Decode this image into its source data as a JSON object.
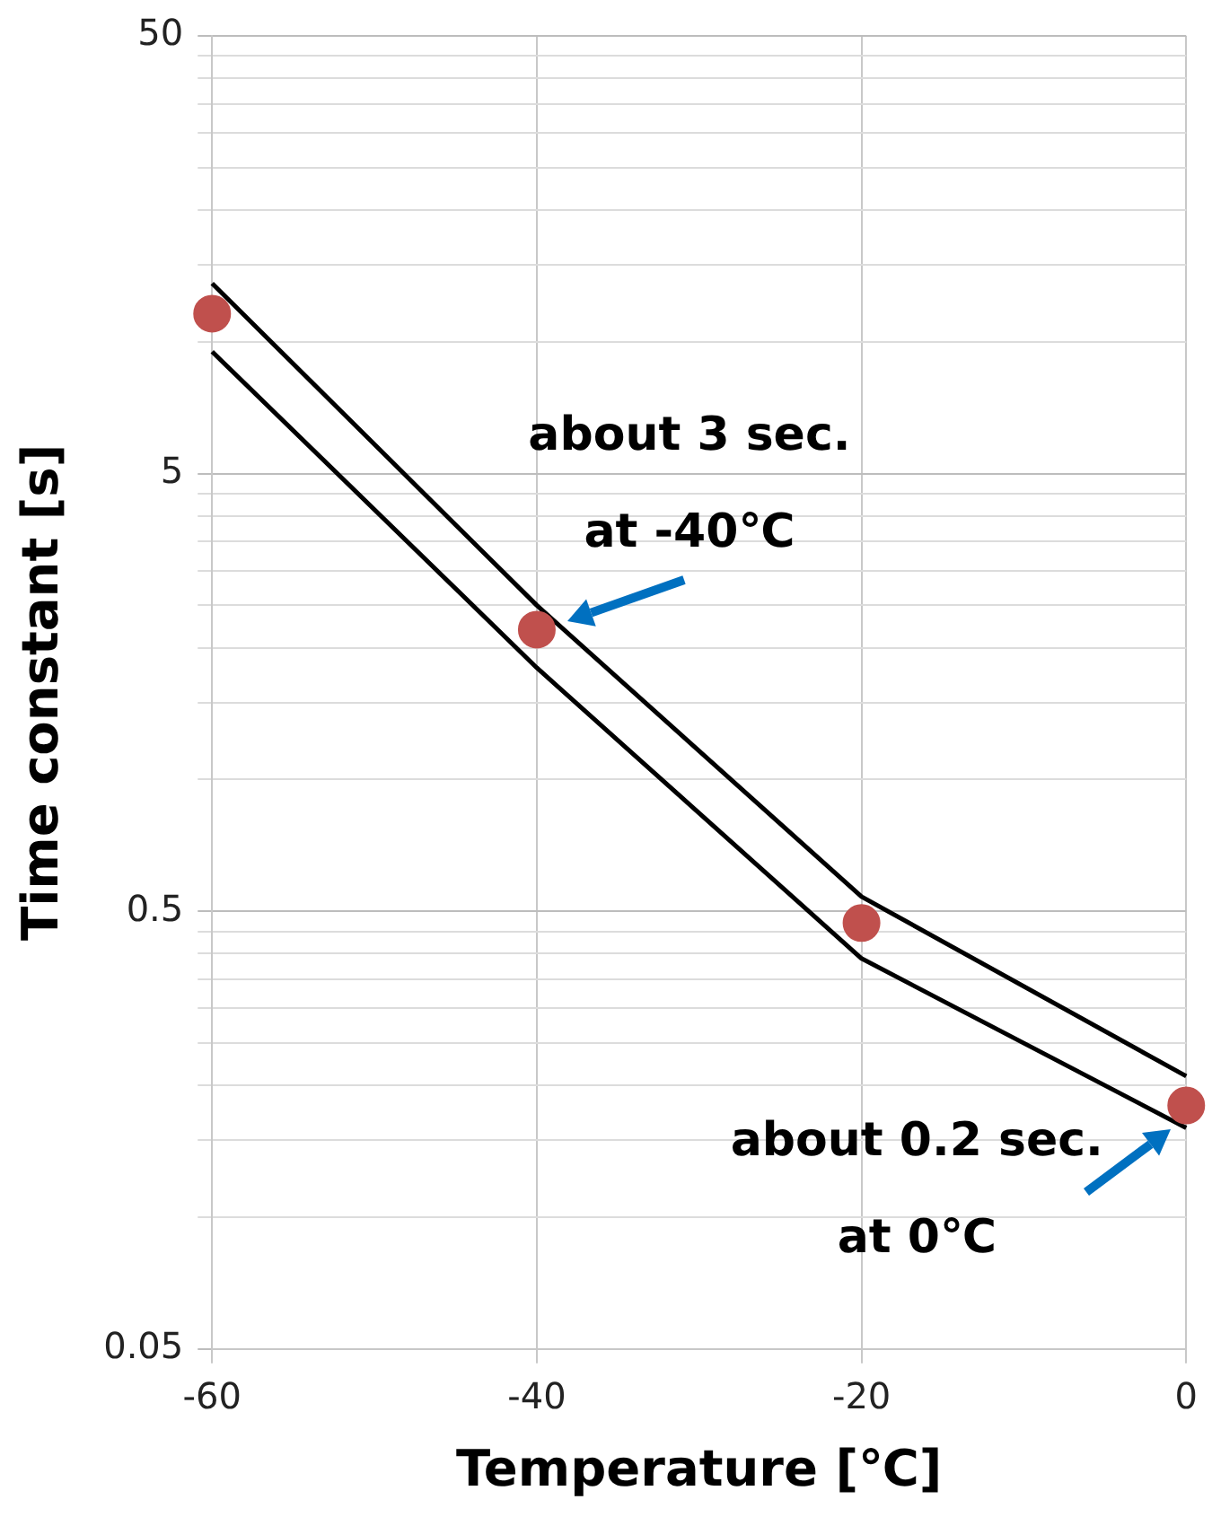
{
  "chart_data": {
    "type": "scatter",
    "xlabel": "Temperature [℃]",
    "ylabel": "Time constant [s]",
    "x": [
      -60,
      -40,
      -20,
      0
    ],
    "series": [
      {
        "type": "scatter",
        "color": "#c0504d",
        "marker": "circle",
        "values": [
          11.6,
          2.2,
          0.47,
          0.18
        ]
      },
      {
        "type": "line",
        "color": "#000000",
        "marker": "none",
        "values": [
          13.6,
          2.5,
          0.54,
          0.21
        ]
      },
      {
        "type": "line",
        "color": "#000000",
        "marker": "none",
        "values": [
          9.5,
          1.8,
          0.39,
          0.16
        ]
      }
    ],
    "log": "y",
    "xlim": [
      -60,
      0
    ],
    "xticks": [
      -60,
      -40,
      -20,
      0
    ],
    "ylim": [
      0.05,
      50
    ],
    "yticks": [
      0.05,
      {
        "value": 0.1,
        "label": null
      },
      {
        "value": 0.15,
        "label": null
      },
      {
        "value": 0.2,
        "label": null
      },
      {
        "value": 0.25,
        "label": null
      },
      {
        "value": 0.3,
        "label": null
      },
      {
        "value": 0.35,
        "label": null
      },
      {
        "value": 0.4,
        "label": null
      },
      {
        "value": 0.45,
        "label": null
      },
      0.5,
      {
        "value": 1,
        "label": null
      },
      {
        "value": 1.5,
        "label": null
      },
      {
        "value": 2,
        "label": null
      },
      {
        "value": 2.5,
        "label": null
      },
      {
        "value": 3,
        "label": null
      },
      {
        "value": 3.5,
        "label": null
      },
      {
        "value": 4,
        "label": null
      },
      {
        "value": 4.5,
        "label": null
      },
      5,
      {
        "value": 10,
        "label": null
      },
      {
        "value": 15,
        "label": null
      },
      {
        "value": 20,
        "label": null
      },
      {
        "value": 25,
        "label": null
      },
      {
        "value": 30,
        "label": null
      },
      {
        "value": 35,
        "label": null
      },
      {
        "value": 40,
        "label": null
      },
      {
        "value": 45,
        "label": null
      },
      50
    ],
    "grid": true,
    "legend": false,
    "annotations": [
      {
        "text": "about 3 sec.\nat -40℃",
        "x": -40,
        "y": 2.2
      },
      {
        "text": "about 0.2 sec.\nat 0℃",
        "x": 0,
        "y": 0.18
      }
    ]
  }
}
